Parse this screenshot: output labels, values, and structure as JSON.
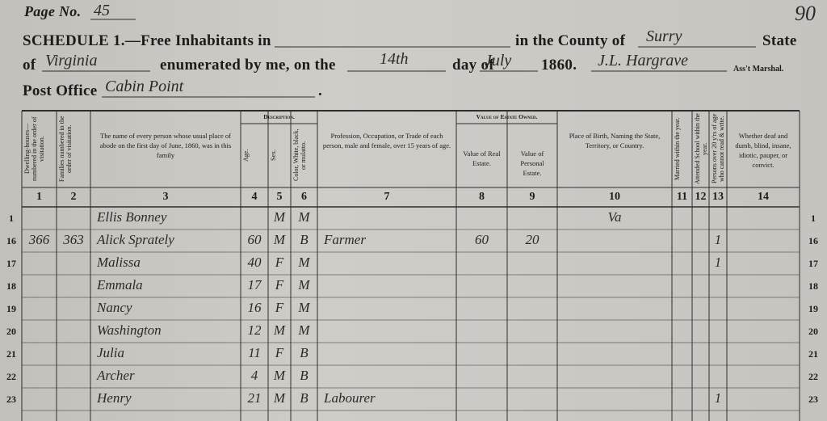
{
  "page_label": "Page No.",
  "page_number": "45",
  "corner_number": "90",
  "header": {
    "schedule": "SCHEDULE 1.—Free Inhabitants in",
    "county_label": "in the County of",
    "county": "Surry",
    "state_label": "State",
    "of": "of",
    "state": "Virginia",
    "enumerated": "enumerated by me, on the",
    "day": "14th",
    "day_of": "day of",
    "month": "July",
    "year": "1860.",
    "marshal": "J.L. Hargrave",
    "marshal_label": "Ass't Marshal.",
    "post_office_label": "Post Office",
    "post_office": "Cabin Point",
    "period": "."
  },
  "table": {
    "group_headers": [
      "Description.",
      "Value of Estate Owned."
    ],
    "columns": [
      "Dwelling-houses—numbered in the order of visitation.",
      "Families numbered in the order of visitation.",
      "The name of every person whose usual place of abode on the first day of June, 1860, was in this family",
      "Age.",
      "Sex.",
      "Color, White, black, or mulatto.",
      "Profession, Occupation, or Trade of each person, male and female, over 15 years of age.",
      "Value of Real Estate.",
      "Value of Personal Estate.",
      "Place of Birth, Naming the State, Territory, or Country.",
      "Married within the year.",
      "Attended School within the year.",
      "Persons over 20 y'rs of age who cannot read & write.",
      "Whether deaf and dumb, blind, insane, idiotic, pauper, or convict."
    ],
    "column_numbers": [
      "1",
      "2",
      "3",
      "4",
      "5",
      "6",
      "7",
      "8",
      "9",
      "10",
      "11",
      "12",
      "13",
      "14"
    ],
    "rows": [
      {
        "line": "1",
        "cells": [
          null,
          null,
          "Ellis Bonney",
          null,
          "M",
          "M",
          null,
          null,
          null,
          "Va",
          null,
          null,
          null,
          null
        ]
      },
      {
        "line": "16",
        "cells": [
          "366",
          "363",
          "Alick Sprately",
          "60",
          "M",
          "B",
          "Farmer",
          "60",
          "20",
          null,
          null,
          null,
          "1",
          null
        ]
      },
      {
        "line": "17",
        "cells": [
          null,
          null,
          "Malissa",
          "40",
          "F",
          "M",
          null,
          null,
          null,
          null,
          null,
          null,
          "1",
          null
        ]
      },
      {
        "line": "18",
        "cells": [
          null,
          null,
          "Emmala",
          "17",
          "F",
          "M",
          null,
          null,
          null,
          null,
          null,
          null,
          null,
          null
        ]
      },
      {
        "line": "19",
        "cells": [
          null,
          null,
          "Nancy",
          "16",
          "F",
          "M",
          null,
          null,
          null,
          null,
          null,
          null,
          null,
          null
        ]
      },
      {
        "line": "20",
        "cells": [
          null,
          null,
          "Washington",
          "12",
          "M",
          "M",
          null,
          null,
          null,
          null,
          null,
          null,
          null,
          null
        ]
      },
      {
        "line": "21",
        "cells": [
          null,
          null,
          "Julia",
          "11",
          "F",
          "B",
          null,
          null,
          null,
          null,
          null,
          null,
          null,
          null
        ]
      },
      {
        "line": "22",
        "cells": [
          null,
          null,
          "Archer",
          "4",
          "M",
          "B",
          null,
          null,
          null,
          null,
          null,
          null,
          null,
          null
        ]
      },
      {
        "line": "23",
        "cells": [
          null,
          null,
          "Henry",
          "21",
          "M",
          "B",
          "Labourer",
          null,
          null,
          null,
          null,
          null,
          "1",
          null
        ]
      }
    ]
  }
}
